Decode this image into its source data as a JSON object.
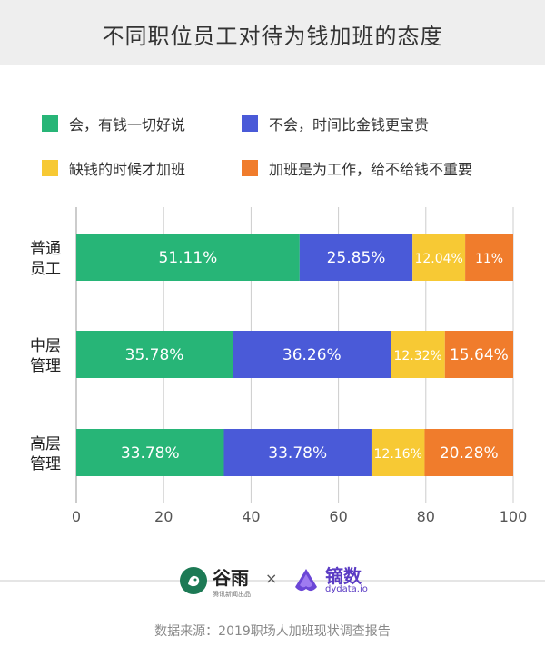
{
  "title": "不同职位员工对待为钱加班的态度",
  "legend": [
    {
      "label": "会，有钱一切好说",
      "color": "#27b577"
    },
    {
      "label": "不会，时间比金钱更宝贵",
      "color": "#4a5ad8"
    },
    {
      "label": "缺钱的时候才加班",
      "color": "#f7c934"
    },
    {
      "label": "加班是为工作，给不给钱不重要",
      "color": "#f07c2c"
    }
  ],
  "chart_data": {
    "type": "bar",
    "orientation": "horizontal",
    "stacked": true,
    "categories": [
      "普通员工",
      "中层管理",
      "高层管理"
    ],
    "category_lines": [
      [
        "普通",
        "员工"
      ],
      [
        "中层",
        "管理"
      ],
      [
        "高层",
        "管理"
      ]
    ],
    "series": [
      {
        "name": "会，有钱一切好说",
        "values": [
          51.11,
          35.78,
          33.78
        ],
        "labels": [
          "51.11%",
          "35.78%",
          "33.78%"
        ],
        "color": "#27b577"
      },
      {
        "name": "不会，时间比金钱更宝贵",
        "values": [
          25.85,
          36.26,
          33.78
        ],
        "labels": [
          "25.85%",
          "36.26%",
          "33.78%"
        ],
        "color": "#4a5ad8"
      },
      {
        "name": "缺钱的时候才加班",
        "values": [
          12.04,
          12.32,
          12.16
        ],
        "labels": [
          "12.04%",
          "12.32%",
          "12.16%"
        ],
        "color": "#f7c934"
      },
      {
        "name": "加班是为工作，给不给钱不重要",
        "values": [
          11,
          15.64,
          20.28
        ],
        "labels": [
          "11%",
          "15.64%",
          "20.28%"
        ],
        "color": "#f07c2c"
      }
    ],
    "xlim": [
      0,
      100
    ],
    "xticks": [
      0,
      20,
      40,
      60,
      80,
      100
    ],
    "xlabel": "",
    "ylabel": "",
    "grid": true
  },
  "brand": {
    "gu_name": "谷雨",
    "gu_sub": "腾讯新闻出品",
    "times": "×",
    "dy_name": "镝数",
    "dy_url": "dydata.io"
  },
  "source": "数据来源：2019职场人加班现状调查报告"
}
